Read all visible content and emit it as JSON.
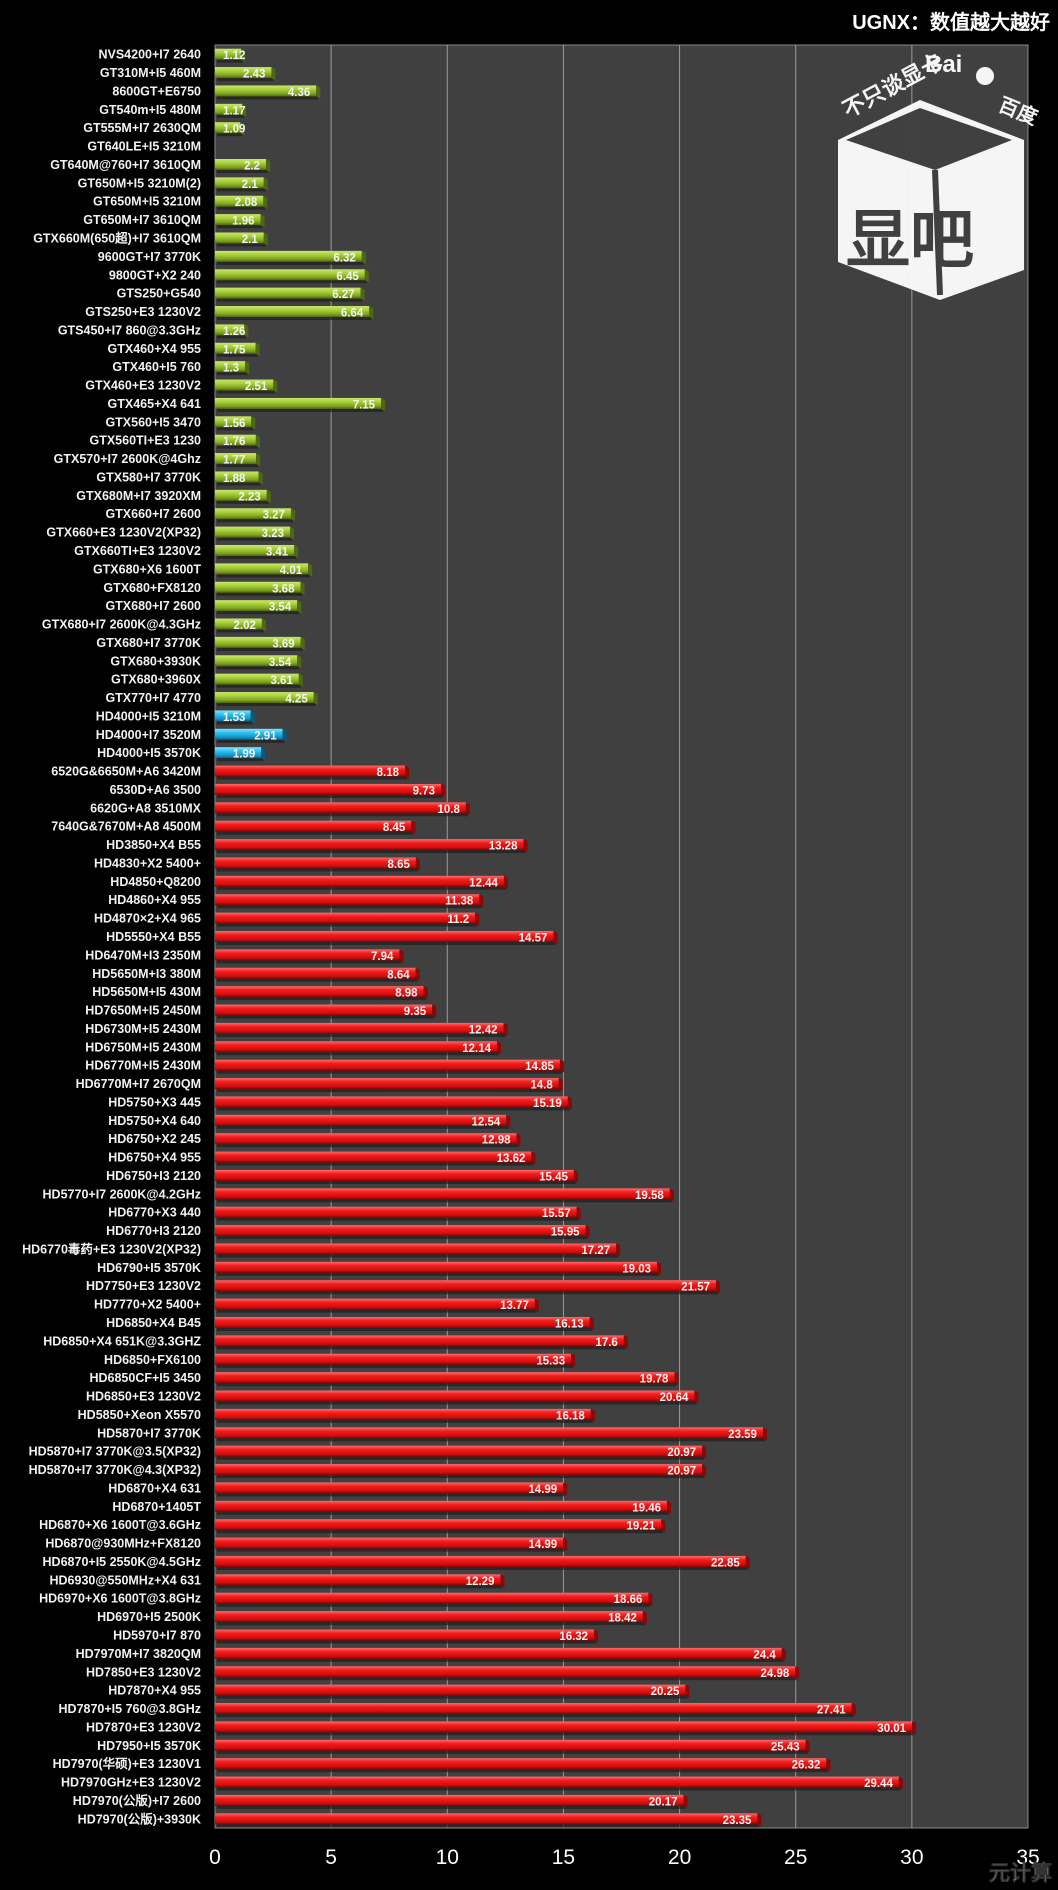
{
  "chart_data": {
    "type": "bar",
    "orientation": "horizontal",
    "title": "UGNX：数值越大越好",
    "xlabel": "",
    "ylabel": "",
    "xlim": [
      0,
      35
    ],
    "xticks": [
      0,
      5,
      10,
      15,
      20,
      25,
      30,
      35
    ],
    "grid": true,
    "legend": "none",
    "colors": {
      "nvidia": "#8dbd2a",
      "intel": "#1fb3e8",
      "amd": "#e8141a",
      "plot_bg": "#404040",
      "page_bg": "#000000",
      "grid": "#9a9a9a"
    },
    "categories": [
      "NVS4200+I7 2640",
      "GT310M+I5 460M",
      "8600GT+E6750",
      "GT540m+I5 480M",
      "GT555M+I7 2630QM",
      "GT640LE+I5 3210M",
      "GT640M@760+I7 3610QM",
      "GT650M+I5 3210M(2)",
      "GT650M+I5 3210M",
      "GT650M+I7 3610QM",
      "GTX660M(650超)+I7 3610QM",
      "9600GT+I7 3770K",
      "9800GT+X2 240",
      "GTS250+G540",
      "GTS250+E3 1230V2",
      "GTS450+I7 860@3.3GHz",
      "GTX460+X4 955",
      "GTX460+I5 760",
      "GTX460+E3 1230V2",
      "GTX465+X4 641",
      "GTX560+I5 3470",
      "GTX560TI+E3 1230",
      "GTX570+I7 2600K@4Ghz",
      "GTX580+I7 3770K",
      "GTX680M+I7 3920XM",
      "GTX660+I7 2600",
      "GTX660+E3 1230V2(XP32)",
      "GTX660TI+E3 1230V2",
      "GTX680+X6 1600T",
      "GTX680+FX8120",
      "GTX680+I7 2600",
      "GTX680+I7 2600K@4.3GHz",
      "GTX680+I7 3770K",
      "GTX680+3930K",
      "GTX680+3960X",
      "GTX770+I7 4770",
      "HD4000+I5 3210M",
      "HD4000+I7 3520M",
      "HD4000+I5 3570K",
      "6520G&6650M+A6 3420M",
      "6530D+A6 3500",
      "6620G+A8 3510MX",
      "7640G&7670M+A8 4500M",
      "HD3850+X4 B55",
      "HD4830+X2 5400+",
      "HD4850+Q8200",
      "HD4860+X4 955",
      "HD4870×2+X4 965",
      "HD5550+X4 B55",
      "HD6470M+I3 2350M",
      "HD5650M+I3 380M",
      "HD5650M+I5 430M",
      "HD7650M+I5 2450M",
      "HD6730M+I5 2430M",
      "HD6750M+I5 2430M",
      "HD6770M+I5 2430M",
      "HD6770M+I7 2670QM",
      "HD5750+X3 445",
      "HD5750+X4 640",
      "HD6750+X2 245",
      "HD6750+X4 955",
      "HD6750+I3 2120",
      "HD5770+I7 2600K@4.2GHz",
      "HD6770+X3 440",
      "HD6770+I3 2120",
      "HD6770毒药+E3 1230V2(XP32)",
      "HD6790+I5 3570K",
      "HD7750+E3 1230V2",
      "HD7770+X2 5400+",
      "HD6850+X4 B45",
      "HD6850+X4 651K@3.3GHZ",
      "HD6850+FX6100",
      "HD6850CF+I5 3450",
      "HD6850+E3 1230V2",
      "HD5850+Xeon X5570",
      "HD5870+I7 3770K",
      "HD5870+I7 3770K@3.5(XP32)",
      "HD5870+I7 3770K@4.3(XP32)",
      "HD6870+X4 631",
      "HD6870+1405T",
      "HD6870+X6 1600T@3.6GHz",
      "HD6870@930MHz+FX8120",
      "HD6870+I5 2550K@4.5GHz",
      "HD6930@550MHz+X4 631",
      "HD6970+X6 1600T@3.8GHz",
      "HD6970+I5 2500K",
      "HD5970+I7 870",
      "HD7970M+I7 3820QM",
      "HD7850+E3 1230V2",
      "HD7870+X4 955",
      "HD7870+I5 760@3.8GHz",
      "HD7870+E3 1230V2",
      "HD7950+I5 3570K",
      "HD7970(华硕)+E3 1230V1",
      "HD7970GHz+E3 1230V2",
      "HD7970(公版)+I7 2600",
      "HD7970(公版)+3930K"
    ],
    "values": [
      1.12,
      2.43,
      4.36,
      1.17,
      1.09,
      null,
      2.2,
      2.1,
      2.08,
      1.96,
      2.1,
      6.32,
      6.45,
      6.27,
      6.64,
      1.26,
      1.75,
      1.3,
      2.51,
      7.15,
      1.56,
      1.76,
      1.77,
      1.88,
      2.23,
      3.27,
      3.23,
      3.41,
      4.01,
      3.68,
      3.54,
      2.02,
      3.69,
      3.54,
      3.61,
      4.25,
      1.53,
      2.91,
      1.99,
      8.18,
      9.73,
      10.8,
      8.45,
      13.28,
      8.65,
      12.44,
      11.38,
      11.2,
      14.57,
      7.94,
      8.64,
      8.98,
      9.35,
      12.42,
      12.14,
      14.85,
      14.8,
      15.19,
      12.54,
      12.98,
      13.62,
      15.45,
      19.58,
      15.57,
      15.95,
      17.27,
      19.03,
      21.57,
      13.77,
      16.13,
      17.6,
      15.33,
      19.78,
      20.64,
      16.18,
      23.59,
      20.97,
      20.97,
      14.99,
      19.46,
      19.21,
      14.99,
      22.85,
      12.29,
      18.66,
      18.42,
      16.32,
      24.4,
      24.98,
      20.25,
      27.41,
      30.01,
      25.43,
      26.32,
      29.44,
      20.17,
      23.35
    ],
    "value_labels": [
      "1.12",
      "2.43",
      "4.36",
      "1.17",
      "1.09",
      "",
      "2.2",
      "2.1",
      "2.08",
      "1.96",
      "2.1",
      "6.32",
      "6.45",
      "6.27",
      "6.64",
      "1.26",
      "1.75",
      "1.3",
      "2.51",
      "7.15",
      "1.56",
      "1.76",
      "1.77",
      "1.88",
      "2.23",
      "3.27",
      "3.23",
      "3.41",
      "4.01",
      "3.68",
      "3.54",
      "2.02",
      "3.69",
      "3.54",
      "3.61",
      "4.25",
      "1.53",
      "2.91",
      "1.99",
      "8.18",
      "9.73",
      "10.8",
      "8.45",
      "13.28",
      "8.65",
      "12.44",
      "11.38",
      "11.2",
      "14.57",
      "7.94",
      "8.64",
      "8.98",
      "9.35",
      "12.42",
      "12.14",
      "14.85",
      "14.8",
      "15.19",
      "12.54",
      "12.98",
      "13.62",
      "15.45",
      "19.58",
      "15.57",
      "15.95",
      "17.27",
      "19.03",
      "21.57",
      "13.77",
      "16.13",
      "17.6",
      "15.33",
      "19.78",
      "20.64",
      "16.18",
      "23.59",
      "20.97",
      "20.97",
      "14.99",
      "19.46",
      "19.21",
      "14.99",
      "22.85",
      "12.29",
      "18.66",
      "18.42",
      "16.32",
      "24.4",
      "24.98",
      "20.25",
      "27.41",
      "30.01",
      "25.43",
      "26.32",
      "29.44",
      "20.17",
      "23.35"
    ],
    "groups": [
      {
        "name": "nvidia",
        "count": 36
      },
      {
        "name": "intel",
        "count": 3
      },
      {
        "name": "amd",
        "count": 58
      }
    ]
  },
  "watermark": {
    "tagline": "不只谈显卡",
    "brand": "Bai",
    "brand_paw": "du",
    "brand_cn": "百度",
    "logo_main": "显吧",
    "logo_top": "卡"
  },
  "corner_watermark": "元计算"
}
